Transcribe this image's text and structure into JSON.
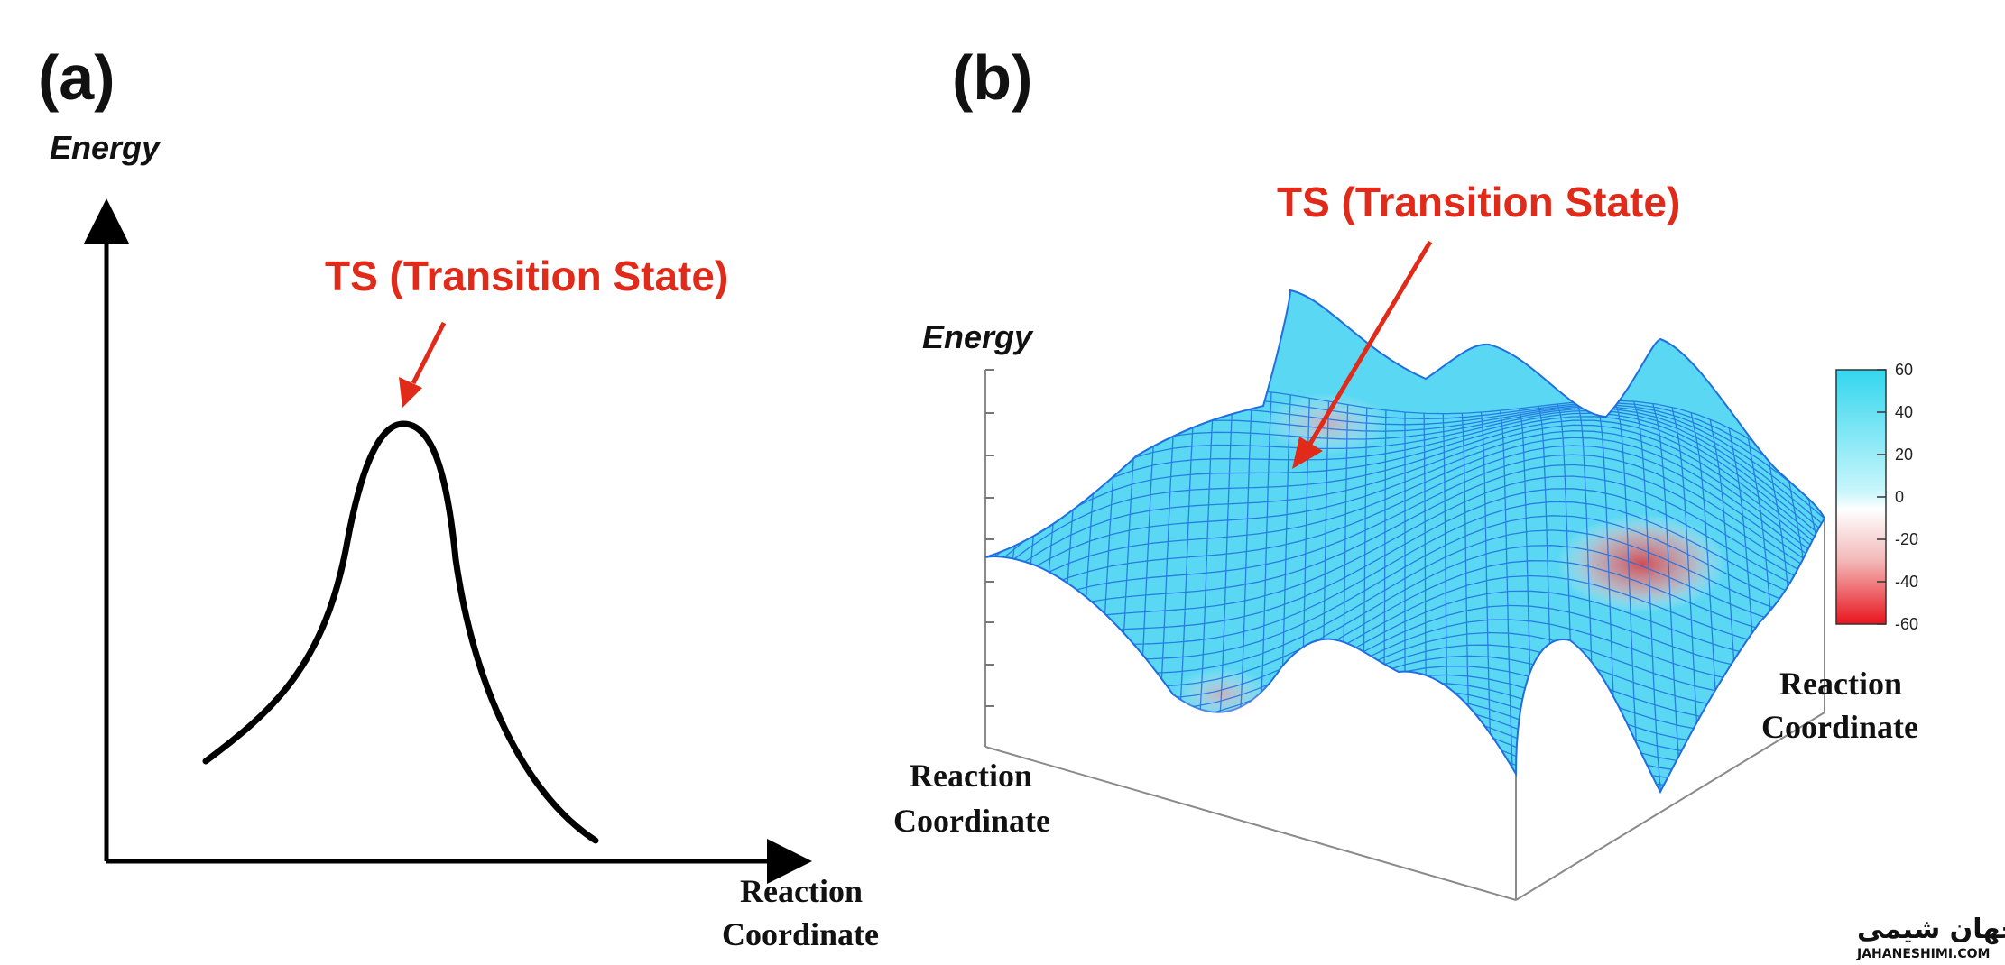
{
  "panel_a": {
    "label": "(a)",
    "y_axis_title": "Energy",
    "x_axis_title_line1": "Reaction",
    "x_axis_title_line2": "Coordinate",
    "annotation": "TS (Transition State)"
  },
  "panel_b": {
    "label": "(b)",
    "z_axis_title": "Energy",
    "left_axis_title_line1": "Reaction",
    "left_axis_title_line2": "Coordinate",
    "right_axis_title_line1": "Reaction",
    "right_axis_title_line2": "Coordinate",
    "annotation": "TS (Transition State)",
    "colorbar_ticks": [
      "60",
      "40",
      "20",
      "0",
      "-20",
      "-40",
      "-60"
    ]
  },
  "colors": {
    "annotation": "#e02a1a",
    "mesh_line": "#1e6fe0",
    "surface_high": "#3fd8f0",
    "surface_low": "#e8202a"
  },
  "logo": {
    "persian_text": "جهان شیمی",
    "latin_text": "JAHANESHIMI.COM"
  }
}
